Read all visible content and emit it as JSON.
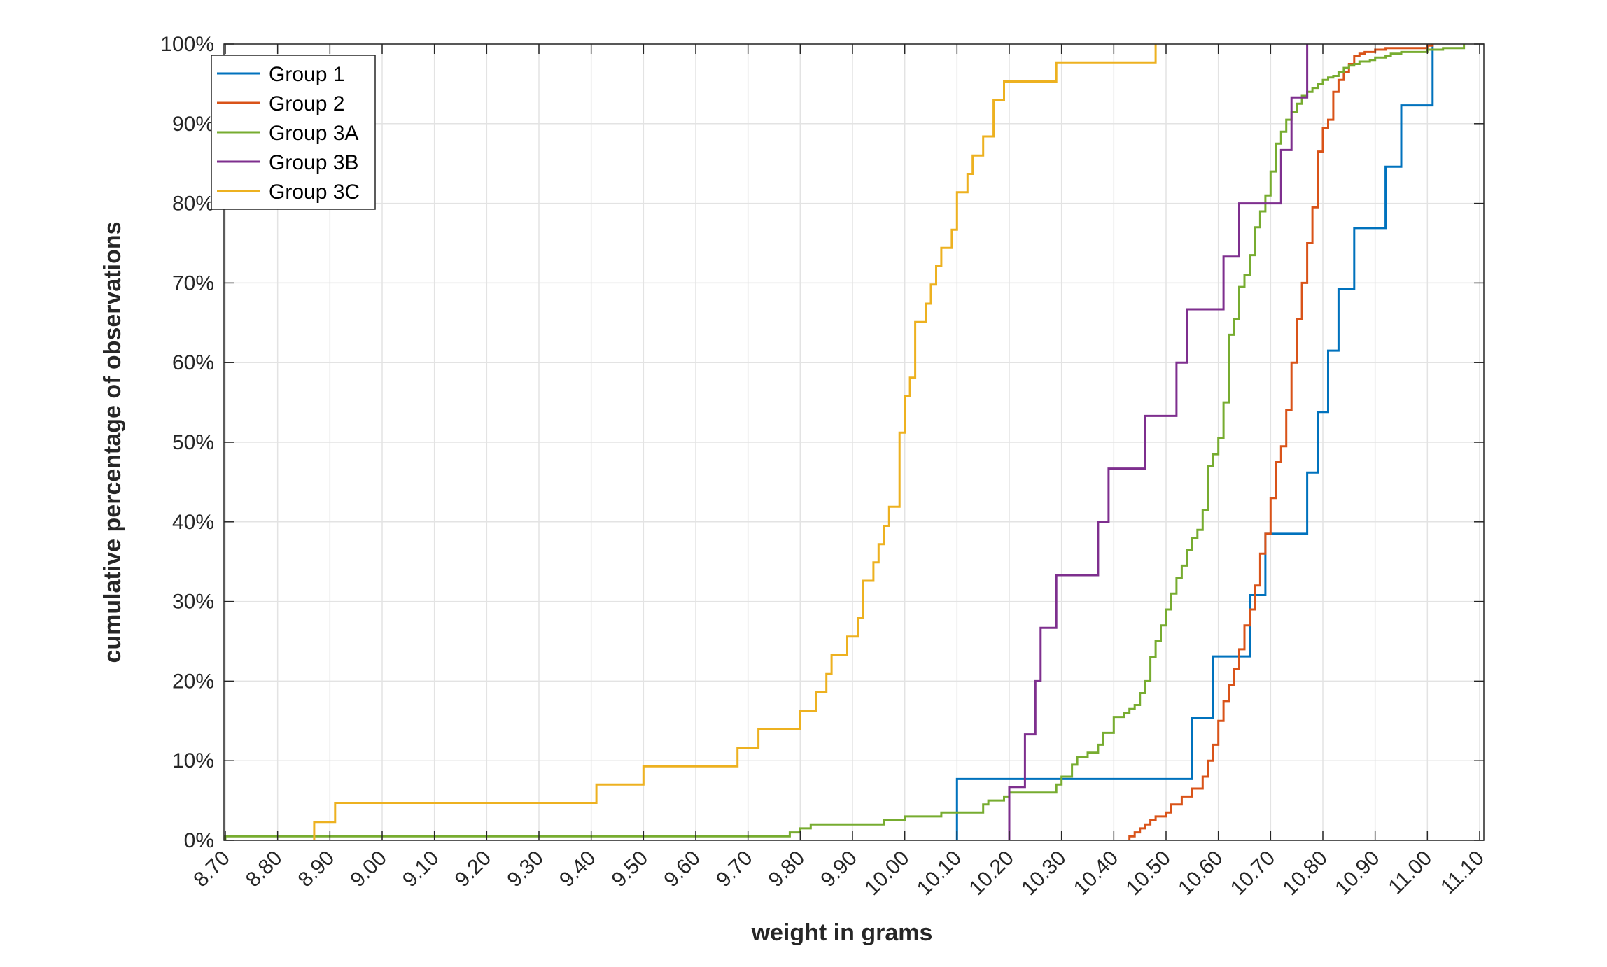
{
  "chart_data": {
    "type": "line",
    "step": true,
    "xlabel": "weight in grams",
    "ylabel": "cumulative percentage of observations",
    "xlim": [
      8.67,
      11.15
    ],
    "ylim": [
      0,
      100
    ],
    "x_ticks": [
      8.7,
      8.8,
      8.9,
      9.0,
      9.1,
      9.2,
      9.3,
      9.4,
      9.5,
      9.6,
      9.7,
      9.8,
      9.9,
      10.0,
      10.1,
      10.2,
      10.3,
      10.4,
      10.5,
      10.6,
      10.7,
      10.8,
      10.9,
      11.0,
      11.1
    ],
    "x_tick_labels": [
      "8.70",
      "8.80",
      "8.90",
      "9.00",
      "9.10",
      "9.20",
      "9.30",
      "9.40",
      "9.50",
      "9.60",
      "9.70",
      "9.80",
      "9.90",
      "10.00",
      "10.10",
      "10.20",
      "10.30",
      "10.40",
      "10.50",
      "10.60",
      "10.70",
      "10.80",
      "10.90",
      "11.00",
      "11.10"
    ],
    "y_ticks": [
      0,
      10,
      20,
      30,
      40,
      50,
      60,
      70,
      80,
      90,
      100
    ],
    "y_tick_labels": [
      "0%",
      "10%",
      "20%",
      "30%",
      "40%",
      "50%",
      "60%",
      "70%",
      "80%",
      "90%",
      "100%"
    ],
    "grid": true,
    "legend_position": "top-left",
    "series": [
      {
        "name": "Group 1",
        "color": "#0072BD",
        "x": [
          10.1,
          10.55,
          10.59,
          10.66,
          10.69,
          10.77,
          10.79,
          10.81,
          10.83,
          10.86,
          10.92,
          10.95,
          11.01
        ],
        "y": [
          7.7,
          15.4,
          23.1,
          30.8,
          38.5,
          46.2,
          53.8,
          61.5,
          69.2,
          76.9,
          84.6,
          92.3,
          100
        ]
      },
      {
        "name": "Group 2",
        "color": "#D95319",
        "x": [
          10.43,
          10.44,
          10.45,
          10.46,
          10.47,
          10.48,
          10.5,
          10.51,
          10.53,
          10.55,
          10.57,
          10.58,
          10.59,
          10.6,
          10.61,
          10.62,
          10.63,
          10.64,
          10.65,
          10.66,
          10.67,
          10.68,
          10.69,
          10.7,
          10.71,
          10.72,
          10.73,
          10.74,
          10.75,
          10.76,
          10.77,
          10.78,
          10.79,
          10.8,
          10.81,
          10.82,
          10.83,
          10.84,
          10.85,
          10.86,
          10.87,
          10.88,
          10.9,
          10.92,
          11.0,
          11.01
        ],
        "y": [
          0.5,
          1.0,
          1.5,
          2.0,
          2.5,
          3.0,
          3.5,
          4.5,
          5.5,
          6.5,
          8.0,
          10.0,
          12.0,
          15.0,
          17.5,
          19.5,
          21.5,
          24.0,
          27.0,
          29.0,
          32.0,
          36.0,
          38.5,
          43.0,
          47.5,
          49.5,
          54.0,
          60.0,
          65.5,
          70.0,
          75.0,
          79.5,
          86.5,
          89.5,
          90.5,
          94.0,
          95.5,
          96.5,
          97.5,
          98.5,
          98.8,
          99.0,
          99.3,
          99.5,
          99.8,
          100
        ]
      },
      {
        "name": "Group 3A",
        "color": "#77AC30",
        "x": [
          8.7,
          9.78,
          9.8,
          9.82,
          9.84,
          9.96,
          10.0,
          10.07,
          10.15,
          10.16,
          10.19,
          10.2,
          10.29,
          10.3,
          10.32,
          10.33,
          10.35,
          10.37,
          10.38,
          10.4,
          10.42,
          10.43,
          10.44,
          10.45,
          10.46,
          10.47,
          10.48,
          10.49,
          10.5,
          10.51,
          10.52,
          10.53,
          10.54,
          10.55,
          10.56,
          10.57,
          10.58,
          10.59,
          10.6,
          10.61,
          10.62,
          10.63,
          10.64,
          10.65,
          10.66,
          10.67,
          10.68,
          10.69,
          10.7,
          10.71,
          10.72,
          10.73,
          10.74,
          10.75,
          10.76,
          10.77,
          10.78,
          10.79,
          10.8,
          10.81,
          10.82,
          10.83,
          10.84,
          10.85,
          10.86,
          10.87,
          10.89,
          10.9,
          10.92,
          10.93,
          10.95,
          11.0,
          11.03,
          11.07
        ],
        "y": [
          0.5,
          1.0,
          1.5,
          2.0,
          2.0,
          2.5,
          3.0,
          3.5,
          4.5,
          5.0,
          5.5,
          6.0,
          7.0,
          8.0,
          9.5,
          10.5,
          11.0,
          12.0,
          13.5,
          15.5,
          16.0,
          16.5,
          17.0,
          18.5,
          20.0,
          23.0,
          25.0,
          27.0,
          29.0,
          31.0,
          33.0,
          34.5,
          36.5,
          38.0,
          39.0,
          41.5,
          47.0,
          48.5,
          50.5,
          55.0,
          63.5,
          65.5,
          69.5,
          71.0,
          73.5,
          77.0,
          79.0,
          81.0,
          84.0,
          87.5,
          89.0,
          90.5,
          91.5,
          92.5,
          93.5,
          94.0,
          94.5,
          95.0,
          95.5,
          95.8,
          96.0,
          96.5,
          97.0,
          97.3,
          97.5,
          97.8,
          98.0,
          98.3,
          98.5,
          98.8,
          99.0,
          99.3,
          99.5,
          100
        ]
      },
      {
        "name": "Group 3B",
        "color": "#7E2F8E",
        "x": [
          10.2,
          10.23,
          10.25,
          10.26,
          10.29,
          10.37,
          10.39,
          10.46,
          10.52,
          10.54,
          10.61,
          10.64,
          10.72,
          10.74,
          10.77
        ],
        "y": [
          6.7,
          13.3,
          20.0,
          26.7,
          33.3,
          40.0,
          46.7,
          53.3,
          60.0,
          66.7,
          73.3,
          80.0,
          86.7,
          93.3,
          100
        ]
      },
      {
        "name": "Group 3C",
        "color": "#EDB120",
        "x": [
          8.87,
          8.91,
          9.41,
          9.5,
          9.68,
          9.72,
          9.8,
          9.83,
          9.85,
          9.86,
          9.89,
          9.91,
          9.92,
          9.94,
          9.95,
          9.96,
          9.97,
          9.99,
          10.0,
          10.01,
          10.02,
          10.04,
          10.05,
          10.06,
          10.07,
          10.09,
          10.1,
          10.12,
          10.13,
          10.15,
          10.17,
          10.19,
          10.21,
          10.29,
          10.48
        ],
        "y": [
          2.3,
          4.7,
          7.0,
          9.3,
          11.6,
          14.0,
          16.3,
          18.6,
          20.9,
          23.3,
          25.6,
          27.9,
          32.6,
          34.9,
          37.2,
          39.5,
          41.9,
          51.2,
          55.8,
          58.1,
          65.1,
          67.4,
          69.8,
          72.1,
          74.4,
          76.7,
          81.4,
          83.7,
          86.0,
          88.4,
          93.0,
          95.3,
          95.3,
          97.7,
          100
        ]
      }
    ]
  }
}
